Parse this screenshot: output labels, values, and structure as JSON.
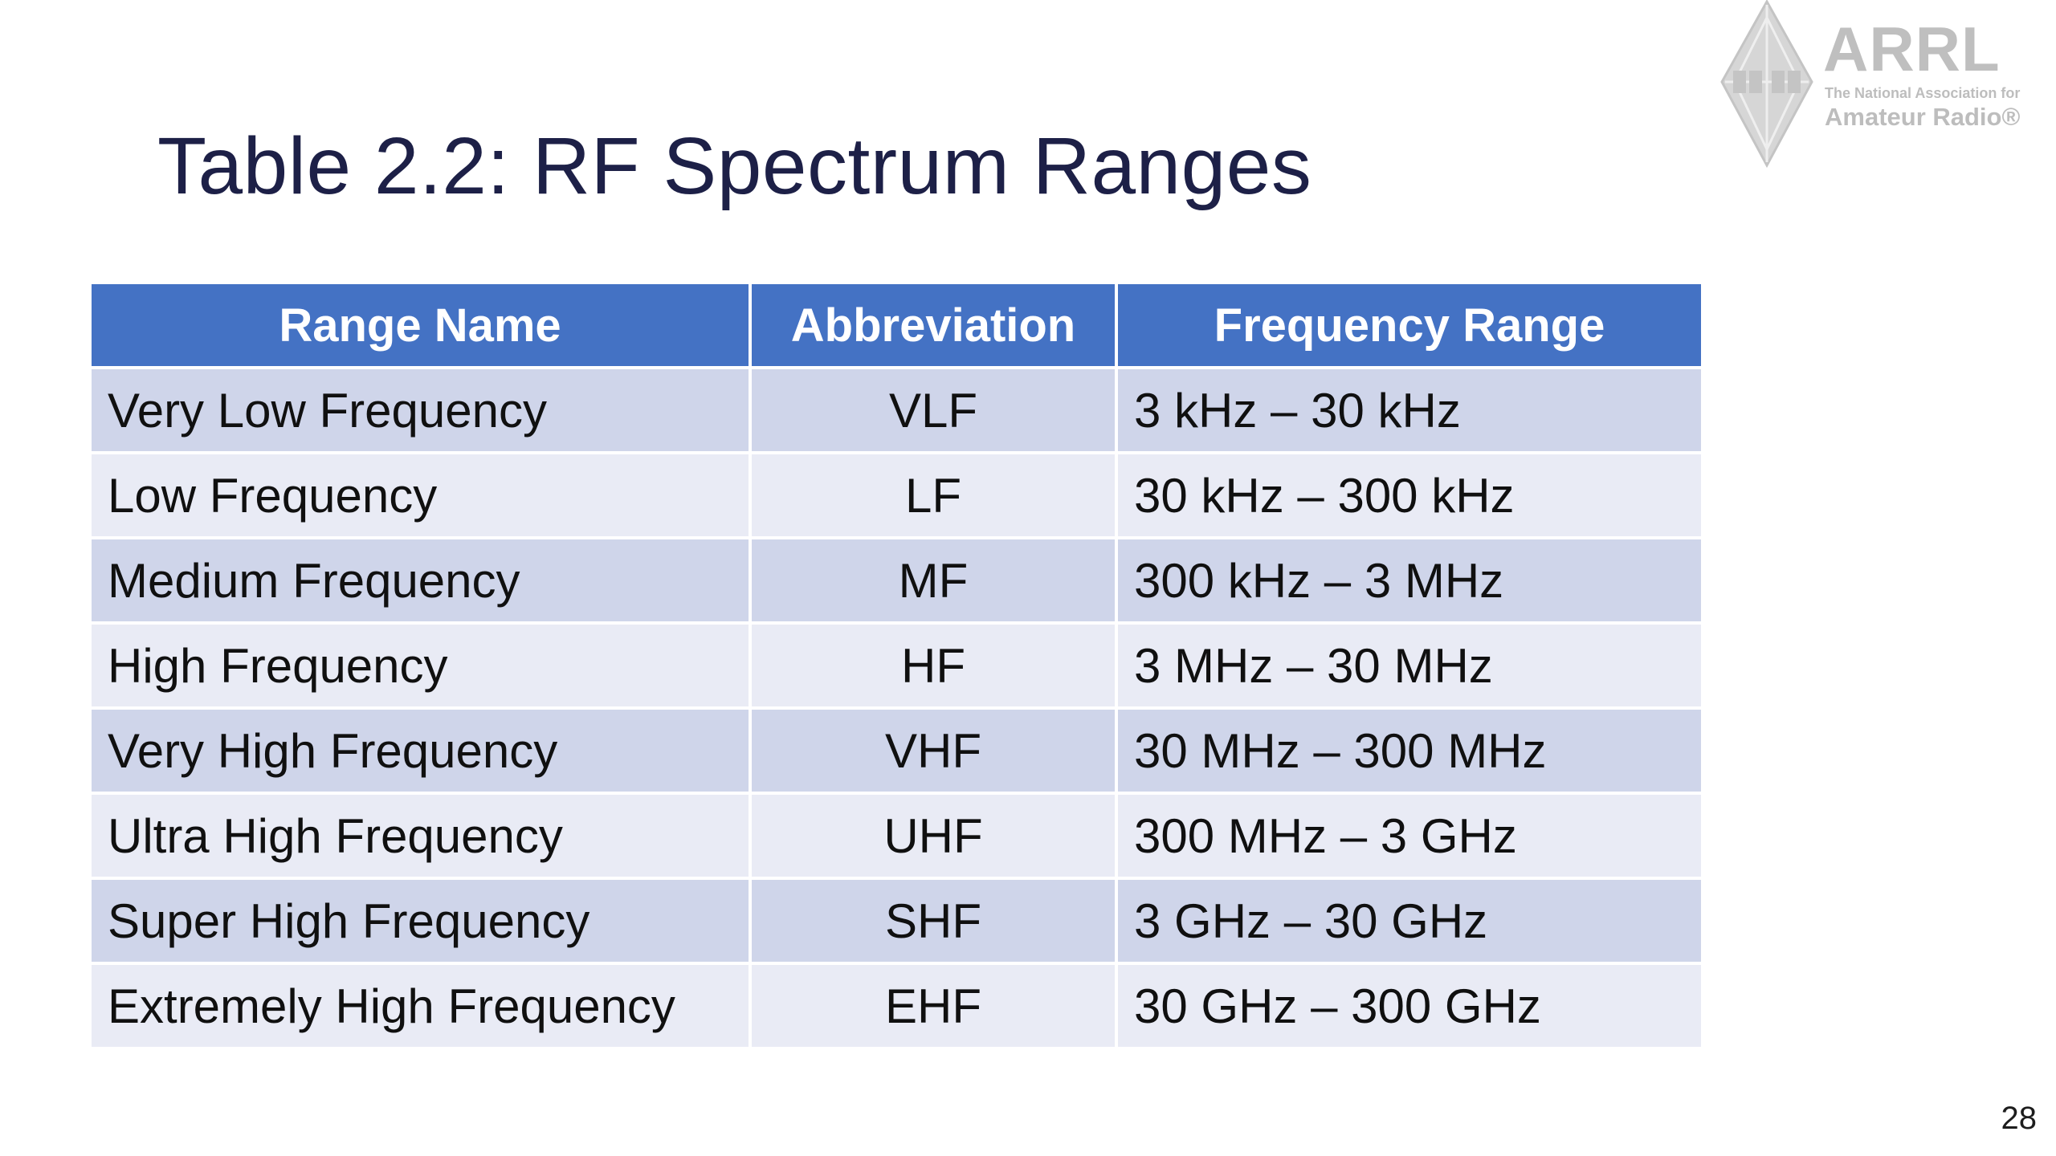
{
  "slide": {
    "title": "Table 2.2: RF Spectrum Ranges",
    "page_number": "28"
  },
  "logo": {
    "icon": "arrl-diamond-emblem-icon",
    "wordmark": "ARRL",
    "tagline_line1": "The National Association for",
    "tagline_line2": "Amateur Radio®"
  },
  "table": {
    "headers": [
      "Range Name",
      "Abbreviation",
      "Frequency Range"
    ],
    "rows": [
      {
        "name": "Very Low Frequency",
        "abbr": "VLF",
        "range": "3 kHz – 30 kHz"
      },
      {
        "name": "Low Frequency",
        "abbr": "LF",
        "range": "30 kHz – 300 kHz"
      },
      {
        "name": "Medium Frequency",
        "abbr": "MF",
        "range": "300 kHz – 3 MHz"
      },
      {
        "name": "High Frequency",
        "abbr": "HF",
        "range": "3 MHz – 30 MHz"
      },
      {
        "name": "Very High Frequency",
        "abbr": "VHF",
        "range": "30 MHz – 300 MHz"
      },
      {
        "name": "Ultra High Frequency",
        "abbr": "UHF",
        "range": "300 MHz – 3 GHz"
      },
      {
        "name": "Super High Frequency",
        "abbr": "SHF",
        "range": "3 GHz – 30 GHz"
      },
      {
        "name": "Extremely High Frequency",
        "abbr": "EHF",
        "range": "30 GHz – 300 GHz"
      }
    ]
  },
  "colors": {
    "title": "#1d2047",
    "header_bg": "#4472c4",
    "row_odd_bg": "#cfd5ea",
    "row_even_bg": "#e9ebf5",
    "logo_gray": "#bfbfbf"
  }
}
